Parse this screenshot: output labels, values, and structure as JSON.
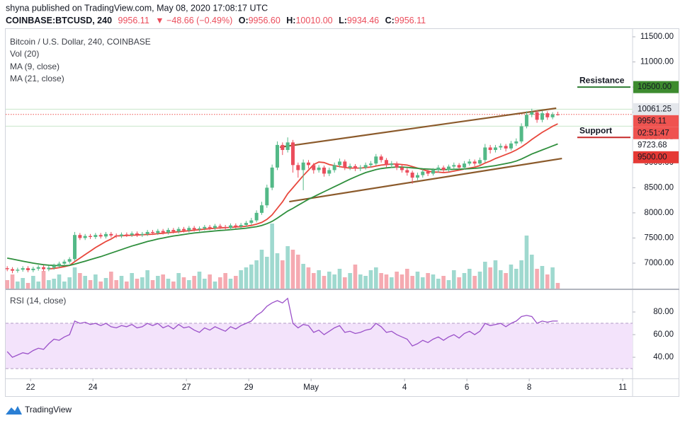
{
  "header": {
    "published": "shyna published on TradingView.com, May 08, 2020 17:08:17 UTC",
    "symbol": "COINBASE:BTCUSD, 240",
    "price": "9956.11",
    "change": "▼ −48.66 (−0.49%)",
    "ohlc": [
      {
        "label": "O:",
        "value": "9956.60"
      },
      {
        "label": "H:",
        "value": "10010.00"
      },
      {
        "label": "L:",
        "value": "9934.46"
      },
      {
        "label": "C:",
        "value": "9956.11"
      }
    ]
  },
  "chart_data": {
    "type": "candlestick",
    "title": "Bitcoin / U.S. Dollar, 240, COINBASE",
    "up_color": "#53b987",
    "down_color": "#eb4d5c",
    "xlim": [
      -0.3,
      120.4
    ],
    "xticks": [
      {
        "value": 4.5,
        "label": "22"
      },
      {
        "value": 16.5,
        "label": "24"
      },
      {
        "value": 34.5,
        "label": "27"
      },
      {
        "value": 46.5,
        "label": "29"
      },
      {
        "value": 58.5,
        "label": "May"
      },
      {
        "value": 76.5,
        "label": "4"
      },
      {
        "value": 88.5,
        "label": "6"
      },
      {
        "value": 100.5,
        "label": "8"
      },
      {
        "value": 118.5,
        "label": "11"
      }
    ],
    "ylim": [
      6494,
      11669
    ],
    "yticks": [
      {
        "value": 7000,
        "label": "7000.00"
      },
      {
        "value": 7500,
        "label": "7500.00"
      },
      {
        "value": 8000,
        "label": "8000.00"
      },
      {
        "value": 8500,
        "label": "8500.00"
      },
      {
        "value": 9000,
        "label": "9000.00"
      },
      {
        "value": 9500,
        "label": "9500.00"
      },
      {
        "value": 10000,
        "label": "10000.00"
      },
      {
        "value": 10500,
        "label": "10500.00"
      },
      {
        "value": 11000,
        "label": "11000.00"
      },
      {
        "value": 11500,
        "label": "11500.00"
      }
    ],
    "open": [
      6900,
      6880,
      6850,
      6870,
      6900,
      6860,
      6890,
      6920,
      6880,
      6910,
      6950,
      6990,
      7030,
      7080,
      7560,
      7500,
      7540,
      7520,
      7560,
      7530,
      7580,
      7550,
      7540,
      7570,
      7560,
      7590,
      7560,
      7580,
      7620,
      7600,
      7640,
      7610,
      7660,
      7630,
      7680,
      7650,
      7700,
      7670,
      7690,
      7720,
      7700,
      7740,
      7720,
      7700,
      7750,
      7730,
      7760,
      7800,
      7850,
      8000,
      8150,
      8500,
      8900,
      9350,
      9250,
      9400,
      8950,
      8850,
      9000,
      8950,
      8850,
      8900,
      8780,
      8850,
      8950,
      9020,
      8900,
      8930,
      8880,
      8900,
      8950,
      8980,
      9120,
      9050,
      8950,
      8980,
      8900,
      8850,
      8800,
      8700,
      8750,
      8820,
      8780,
      8850,
      8900,
      8850,
      8920,
      8950,
      8900,
      8980,
      9020,
      8980,
      9050,
      9300,
      9250,
      9300,
      9330,
      9280,
      9380,
      9420,
      9720,
      9950,
      10000,
      9850,
      9980,
      9900,
      9956.6
    ],
    "high": [
      6940,
      6920,
      6910,
      6940,
      6940,
      6930,
      6960,
      6960,
      6950,
      6990,
      7030,
      7070,
      7120,
      7620,
      7600,
      7580,
      7580,
      7600,
      7600,
      7620,
      7620,
      7590,
      7610,
      7610,
      7630,
      7630,
      7620,
      7660,
      7660,
      7680,
      7680,
      7700,
      7700,
      7720,
      7720,
      7740,
      7740,
      7730,
      7760,
      7760,
      7780,
      7780,
      7760,
      7790,
      7790,
      7800,
      7840,
      7900,
      8050,
      8220,
      8560,
      8960,
      9420,
      9400,
      9500,
      9450,
      9000,
      9060,
      9050,
      8990,
      8950,
      8940,
      8900,
      9000,
      9080,
      9060,
      8980,
      8970,
      8950,
      9000,
      9030,
      9170,
      9160,
      9090,
      9030,
      9020,
      8950,
      8890,
      8840,
      8800,
      8870,
      8860,
      8890,
      8950,
      8940,
      8960,
      9000,
      8990,
      9030,
      9070,
      9060,
      9100,
      9370,
      9350,
      9350,
      9380,
      9370,
      9430,
      9480,
      9780,
      10020,
      10070,
      10040,
      10030,
      10020,
      10000,
      10010
    ],
    "low": [
      6840,
      6800,
      6810,
      6830,
      6820,
      6820,
      6850,
      6840,
      6840,
      6870,
      6910,
      6950,
      6990,
      7040,
      7460,
      7460,
      7480,
      7480,
      7490,
      7490,
      7510,
      7500,
      7500,
      7520,
      7520,
      7520,
      7520,
      7540,
      7560,
      7560,
      7570,
      7570,
      7590,
      7590,
      7610,
      7610,
      7630,
      7630,
      7650,
      7660,
      7660,
      7680,
      7660,
      7660,
      7690,
      7690,
      7720,
      7760,
      7810,
      7960,
      8100,
      8450,
      8850,
      9150,
      9200,
      8800,
      8700,
      8450,
      8880,
      8780,
      8800,
      8720,
      8730,
      8800,
      8900,
      8850,
      8850,
      8830,
      8830,
      8860,
      8900,
      8940,
      9000,
      8900,
      8900,
      8850,
      8800,
      8740,
      8580,
      8650,
      8700,
      8730,
      8740,
      8800,
      8800,
      8810,
      8870,
      8860,
      8860,
      8940,
      8930,
      8940,
      9000,
      9180,
      9200,
      9250,
      9220,
      9240,
      9330,
      9380,
      9680,
      9900,
      9790,
      9800,
      9850,
      9860,
      9934.46
    ],
    "close": [
      6880,
      6850,
      6870,
      6900,
      6860,
      6890,
      6920,
      6880,
      6910,
      6950,
      6990,
      7030,
      7080,
      7560,
      7500,
      7540,
      7520,
      7560,
      7530,
      7580,
      7550,
      7540,
      7570,
      7560,
      7590,
      7560,
      7580,
      7620,
      7600,
      7640,
      7610,
      7660,
      7630,
      7680,
      7650,
      7700,
      7670,
      7690,
      7720,
      7700,
      7740,
      7720,
      7700,
      7750,
      7730,
      7760,
      7800,
      7850,
      8000,
      8150,
      8500,
      8900,
      9350,
      9250,
      9400,
      8950,
      8850,
      9000,
      8950,
      8850,
      8900,
      8780,
      8850,
      8950,
      9020,
      8900,
      8930,
      8880,
      8900,
      8950,
      8980,
      9120,
      9050,
      8950,
      8980,
      8900,
      8850,
      8800,
      8700,
      8750,
      8820,
      8780,
      8850,
      8900,
      8850,
      8920,
      8950,
      8900,
      8980,
      9020,
      8980,
      9050,
      9300,
      9250,
      9300,
      9330,
      9280,
      9380,
      9420,
      9720,
      9950,
      10000,
      9850,
      9980,
      9900,
      9956.6,
      9956.11
    ],
    "volume": {
      "name": "Vol (20)",
      "up_color": "#9fd9cf",
      "down_color": "#f5aab1",
      "values": [
        12,
        20,
        10,
        15,
        8,
        18,
        10,
        25,
        12,
        14,
        20,
        10,
        16,
        30,
        22,
        18,
        12,
        20,
        10,
        15,
        24,
        12,
        18,
        10,
        22,
        14,
        16,
        26,
        12,
        18,
        20,
        14,
        10,
        22,
        16,
        12,
        18,
        24,
        14,
        20,
        10,
        16,
        22,
        14,
        18,
        26,
        30,
        34,
        40,
        55,
        45,
        92,
        50,
        40,
        60,
        55,
        48,
        35,
        30,
        22,
        26,
        18,
        24,
        20,
        28,
        16,
        22,
        34,
        20,
        18,
        26,
        30,
        22,
        20,
        16,
        24,
        20,
        28,
        18,
        24,
        16,
        22,
        20,
        14,
        18,
        12,
        26,
        16,
        22,
        28,
        18,
        24,
        38,
        30,
        40,
        26,
        22,
        34,
        28,
        40,
        75,
        48,
        28,
        32,
        20,
        30,
        8
      ]
    },
    "series": [
      {
        "name": "MA (9, close)",
        "color": "#e8473c",
        "values": [
          null,
          null,
          null,
          null,
          null,
          null,
          null,
          null,
          6885,
          6895,
          6910,
          6930,
          6955,
          7030,
          7100,
          7170,
          7240,
          7310,
          7370,
          7430,
          7480,
          7542,
          7545,
          7550,
          7555,
          7560,
          7565,
          7570,
          7575,
          7585,
          7595,
          7605,
          7615,
          7625,
          7635,
          7645,
          7655,
          7665,
          7675,
          7685,
          7695,
          7700,
          7705,
          7710,
          7720,
          7725,
          7735,
          7750,
          7775,
          7810,
          7870,
          7960,
          8090,
          8220,
          8380,
          8500,
          8620,
          8740,
          8850,
          8960,
          9010,
          9000,
          8960,
          8940,
          8920,
          8900,
          8890,
          8890,
          8890,
          8900,
          8910,
          8930,
          8950,
          8960,
          8970,
          8970,
          8960,
          8950,
          8920,
          8890,
          8860,
          8830,
          8810,
          8810,
          8800,
          8810,
          8830,
          8850,
          8870,
          8890,
          8910,
          8940,
          8990,
          9030,
          9080,
          9120,
          9160,
          9200,
          9250,
          9310,
          9380,
          9460,
          9530,
          9600,
          9660,
          9720,
          9770
        ]
      },
      {
        "name": "MA (21, close)",
        "color": "#2f8f3d",
        "values": [
          7100,
          7080,
          7060,
          7040,
          7020,
          7000,
          6985,
          6970,
          6960,
          6955,
          6950,
          6950,
          6955,
          6980,
          7010,
          7040,
          7070,
          7100,
          7130,
          7165,
          7200,
          7235,
          7270,
          7305,
          7340,
          7370,
          7400,
          7430,
          7455,
          7480,
          7500,
          7520,
          7540,
          7555,
          7570,
          7585,
          7600,
          7610,
          7620,
          7630,
          7640,
          7650,
          7655,
          7665,
          7675,
          7685,
          7695,
          7710,
          7725,
          7750,
          7785,
          7830,
          7895,
          7965,
          8035,
          8090,
          8150,
          8210,
          8270,
          8320,
          8370,
          8420,
          8470,
          8520,
          8570,
          8620,
          8670,
          8715,
          8760,
          8800,
          8830,
          8860,
          8880,
          8895,
          8905,
          8910,
          8910,
          8905,
          8895,
          8885,
          8875,
          8870,
          8865,
          8862,
          8860,
          8862,
          8865,
          8868,
          8872,
          8878,
          8885,
          8895,
          8910,
          8925,
          8940,
          8960,
          8980,
          9000,
          9030,
          9070,
          9120,
          9170,
          9210,
          9250,
          9290,
          9330,
          9370
        ]
      }
    ],
    "trendlines": [
      {
        "x": [
          52.5,
          105.7
        ],
        "y": [
          9306,
          10080
        ],
        "color": "#8b5a2b"
      },
      {
        "x": [
          54.3,
          106.8
        ],
        "y": [
          8223,
          9081
        ],
        "color": "#8b5a2b"
      }
    ],
    "levels": [
      {
        "text": "Resistance",
        "value": 10500,
        "color": "#c62828",
        "line_color": "#2e7d32"
      },
      {
        "text": "Support",
        "value": 9500,
        "color": "#1e1e1e",
        "line_color": "#c62828"
      }
    ],
    "price_labels": [
      {
        "value": 10500,
        "label": "10500.00",
        "color": "#3d8b2f",
        "text_color": "#ffffff",
        "line": null
      },
      {
        "value": 10061.25,
        "label": "10061.25",
        "color": "#e4e7ec",
        "text_color": "#131722",
        "line": "solid"
      },
      {
        "value": 9956.11,
        "label": "9956.11",
        "color": "#ef5350",
        "text_color": "#ffffff",
        "line": "dotted",
        "countdown": "02:51:47"
      },
      {
        "value": 9723.68,
        "label": "9723.68",
        "color": "#ffffff",
        "text_color": "#131722",
        "line": "solid"
      },
      {
        "value": 9500,
        "label": "9500.00",
        "color": "#e53935",
        "text_color": "#ffffff",
        "line": null
      }
    ],
    "rsi": {
      "title": "RSI (14, close)",
      "color": "#9b51c9",
      "band": [
        30,
        70
      ],
      "band_color": "#f3e3fb",
      "ylim": [
        21.3,
        99.4
      ],
      "yticks": [
        {
          "value": 40,
          "label": "40.00"
        },
        {
          "value": 60,
          "label": "60.00"
        },
        {
          "value": 80,
          "label": "80.00"
        }
      ],
      "values": [
        45,
        40,
        42,
        44,
        43,
        46,
        48,
        47,
        52,
        56,
        55,
        58,
        60,
        72,
        70,
        71,
        69,
        70,
        68,
        70,
        67,
        66,
        68,
        67,
        69,
        66,
        67,
        70,
        68,
        70,
        66,
        68,
        65,
        69,
        66,
        67,
        64,
        62,
        66,
        64,
        67,
        65,
        63,
        67,
        65,
        68,
        70,
        72,
        77,
        80,
        85,
        88,
        90,
        88,
        92,
        70,
        66,
        69,
        68,
        62,
        64,
        60,
        63,
        66,
        68,
        62,
        63,
        61,
        62,
        64,
        65,
        70,
        67,
        62,
        63,
        60,
        58,
        56,
        50,
        52,
        55,
        53,
        56,
        58,
        55,
        58,
        60,
        57,
        61,
        63,
        60,
        63,
        70,
        68,
        69,
        70,
        67,
        70,
        72,
        76,
        77,
        76,
        70,
        72,
        71,
        72,
        72
      ]
    }
  },
  "footer": {
    "brand": "TradingView"
  }
}
